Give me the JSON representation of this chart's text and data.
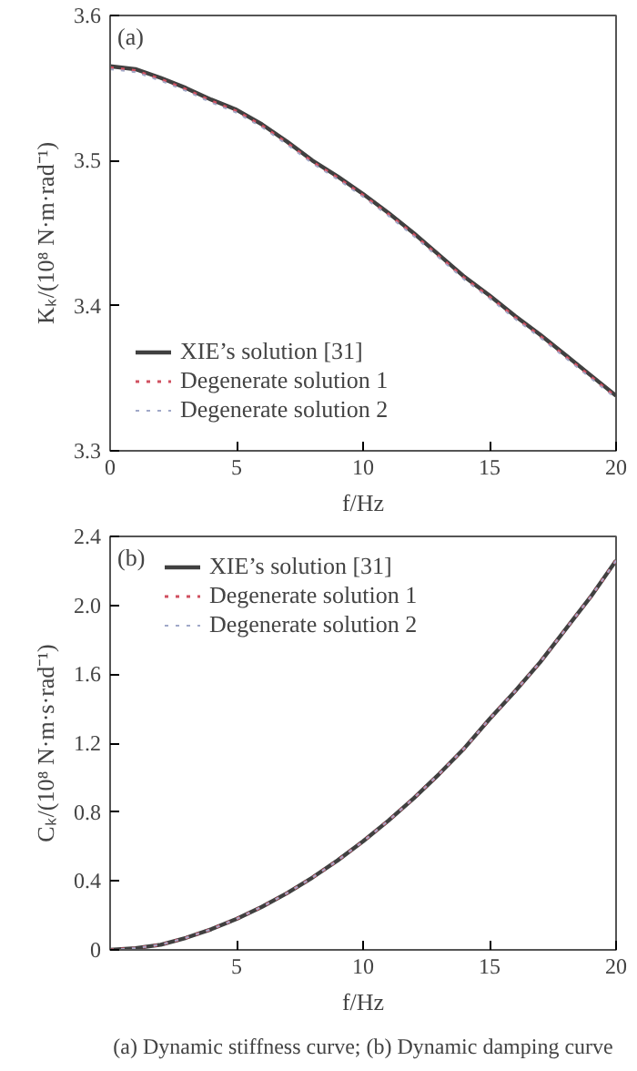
{
  "chart_data": [
    {
      "type": "line",
      "xlabel": "f/Hz",
      "ylabel": "Kₖ/(10⁸ N·m·rad⁻¹)",
      "annotations": [
        "(a)"
      ],
      "x": [
        0,
        1,
        2,
        3,
        4,
        5,
        6,
        7,
        8,
        9,
        10,
        11,
        12,
        13,
        14,
        15,
        16,
        17,
        18,
        19,
        20
      ],
      "xlim": [
        0,
        20
      ],
      "xticks": [
        0,
        5,
        10,
        15,
        20
      ],
      "ylim": [
        3.3,
        3.6
      ],
      "yticks": [
        3.3,
        3.4,
        3.5,
        3.6
      ],
      "grid": false,
      "legend": "bottom left",
      "series": [
        {
          "name": "XIE’s solution [31]",
          "color": "#404040",
          "line_style": "solid",
          "values": [
            3.565,
            3.563,
            3.557,
            3.55,
            3.542,
            3.535,
            3.525,
            3.513,
            3.5,
            3.489,
            3.477,
            3.464,
            3.45,
            3.435,
            3.42,
            3.407,
            3.393,
            3.38,
            3.366,
            3.352,
            3.338
          ]
        },
        {
          "name": "Degenerate solution 1",
          "color": "#d05060",
          "line_style": "dotted",
          "values": [
            3.564,
            3.562,
            3.556,
            3.549,
            3.541,
            3.534,
            3.524,
            3.512,
            3.499,
            3.488,
            3.476,
            3.463,
            3.449,
            3.434,
            3.419,
            3.406,
            3.392,
            3.379,
            3.365,
            3.351,
            3.337
          ]
        },
        {
          "name": "Degenerate solution 2",
          "color": "#a0a8c8",
          "line_style": "dotted",
          "values": [
            3.563,
            3.561,
            3.555,
            3.548,
            3.54,
            3.533,
            3.523,
            3.511,
            3.498,
            3.487,
            3.475,
            3.462,
            3.448,
            3.433,
            3.418,
            3.405,
            3.391,
            3.378,
            3.364,
            3.35,
            3.336
          ]
        }
      ]
    },
    {
      "type": "line",
      "xlabel": "f/Hz",
      "ylabel": "Cₖ/(10⁸ N·m·s·rad⁻¹)",
      "annotations": [
        "(b)",
        "(a) Dynamic stiffness curve; (b) Dynamic damping curve"
      ],
      "x": [
        0,
        1,
        2,
        3,
        4,
        5,
        6,
        7,
        8,
        9,
        10,
        11,
        12,
        13,
        14,
        15,
        16,
        17,
        18,
        19,
        20
      ],
      "xlim": [
        0,
        20
      ],
      "xticks": [
        5,
        10,
        15,
        20
      ],
      "ylim": [
        0,
        2.4
      ],
      "yticks": [
        0,
        0.4,
        0.8,
        1.2,
        1.6,
        {
          "value": 2,
          "label": "2.0"
        },
        2.4
      ],
      "grid": false,
      "legend": "top left",
      "series": [
        {
          "name": "XIE’s solution [31]",
          "color": "#404040",
          "line_style": "solid",
          "values": [
            0,
            0.01,
            0.03,
            0.07,
            0.12,
            0.18,
            0.25,
            0.33,
            0.42,
            0.52,
            0.63,
            0.75,
            0.88,
            1.02,
            1.17,
            1.34,
            1.5,
            1.67,
            1.86,
            2.05,
            2.26
          ]
        },
        {
          "name": "Degenerate solution 1",
          "color": "#d05060",
          "line_style": "dotted",
          "values": [
            0,
            0.01,
            0.03,
            0.07,
            0.12,
            0.18,
            0.25,
            0.33,
            0.42,
            0.52,
            0.63,
            0.75,
            0.88,
            1.02,
            1.17,
            1.34,
            1.5,
            1.67,
            1.86,
            2.05,
            2.26
          ]
        },
        {
          "name": "Degenerate solution 2",
          "color": "#a0a8c8",
          "line_style": "dotted",
          "values": [
            0,
            0.01,
            0.03,
            0.07,
            0.12,
            0.18,
            0.25,
            0.33,
            0.42,
            0.52,
            0.63,
            0.75,
            0.88,
            1.02,
            1.17,
            1.34,
            1.5,
            1.67,
            1.86,
            2.05,
            2.26
          ]
        }
      ]
    }
  ]
}
